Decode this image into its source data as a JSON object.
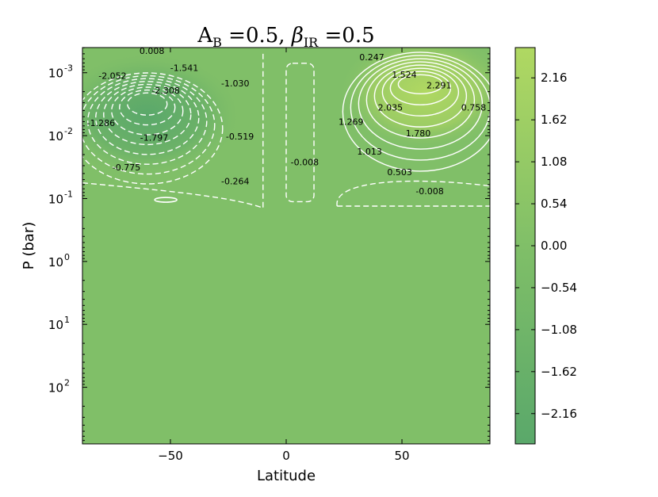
{
  "chart_data": {
    "type": "contour",
    "title": "A_B =0.5, β_IR =0.5",
    "title_display": "AB =0.5, βIR =0.5",
    "xlabel": "Latitude",
    "ylabel": "P (bar)",
    "xlim": [
      -88,
      88
    ],
    "ylim_log10": [
      -3.4,
      2.9
    ],
    "y_scale": "log",
    "y_inverted": true,
    "x_ticks": [
      -50,
      0,
      50
    ],
    "x_tick_labels": [
      "−50",
      "0",
      "50"
    ],
    "y_ticks": [
      -3,
      -2,
      -1,
      0,
      1,
      2
    ],
    "y_tick_labels": [
      "10",
      "10",
      "10",
      "10",
      "10",
      "10"
    ],
    "y_tick_exponents": [
      "-3",
      "-2",
      "-1",
      "0",
      "1",
      "2"
    ],
    "colorbar": {
      "ticks": [
        2.16,
        1.62,
        1.08,
        0.54,
        0.0,
        -0.54,
        -1.08,
        -1.62,
        -2.16
      ],
      "tick_labels": [
        "2.16",
        "1.62",
        "1.08",
        "0.54",
        "0.00",
        "−0.54",
        "−1.08",
        "−1.62",
        "−2.16"
      ],
      "range": [
        -2.55,
        2.55
      ],
      "color_low": "#5aa86a",
      "color_mid": "#80bf68",
      "color_high": "#b0d862"
    },
    "background_color": "#80bf68",
    "contour_labels": [
      {
        "text": "0.008",
        "x": -58,
        "y": -3.35
      },
      {
        "text": "-2.052",
        "x": -75,
        "y": -2.95
      },
      {
        "text": "-1.541",
        "x": -44,
        "y": -3.08
      },
      {
        "text": "-2.308",
        "x": -52,
        "y": -2.72
      },
      {
        "text": "-1.030",
        "x": -22,
        "y": -2.83
      },
      {
        "text": "-1.286",
        "x": -80,
        "y": -2.2
      },
      {
        "text": "-1.797",
        "x": -57,
        "y": -1.97
      },
      {
        "text": "-0.519",
        "x": -20,
        "y": -1.99
      },
      {
        "text": "-0.775",
        "x": -69,
        "y": -1.5
      },
      {
        "text": "-0.264",
        "x": -22,
        "y": -1.28
      },
      {
        "text": "-0.008",
        "x": 8,
        "y": -1.58
      },
      {
        "text": "0.247",
        "x": 37,
        "y": -3.25
      },
      {
        "text": "1.524",
        "x": 51,
        "y": -2.97
      },
      {
        "text": "2.291",
        "x": 66,
        "y": -2.8
      },
      {
        "text": "2.035",
        "x": 45,
        "y": -2.45
      },
      {
        "text": "0.758",
        "x": 81,
        "y": -2.45
      },
      {
        "text": "1.269",
        "x": 28,
        "y": -2.22
      },
      {
        "text": "1.780",
        "x": 57,
        "y": -2.04
      },
      {
        "text": "1.013",
        "x": 36,
        "y": -1.75
      },
      {
        "text": "0.503",
        "x": 49,
        "y": -1.42
      },
      {
        "text": "-0.008",
        "x": 62,
        "y": -1.12
      }
    ],
    "extrema": [
      {
        "x": -60,
        "y": -2.55,
        "value": -2.55
      },
      {
        "x": 60,
        "y": -2.85,
        "value": 2.55
      }
    ]
  }
}
